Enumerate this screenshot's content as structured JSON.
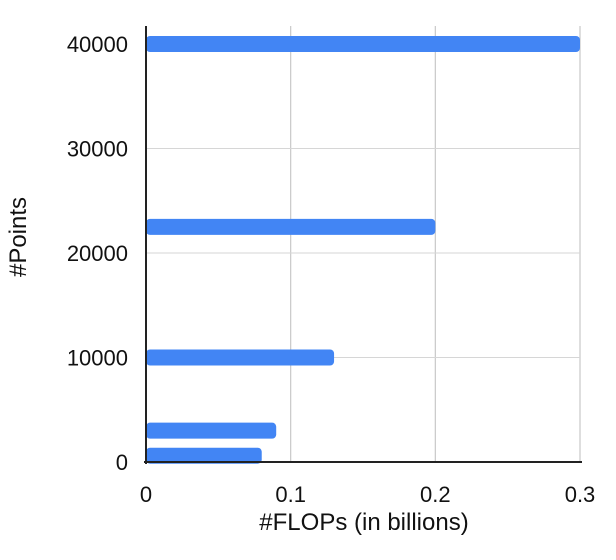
{
  "chart_data": {
    "type": "bar",
    "orientation": "horizontal",
    "title": "",
    "xlabel": "#FLOPs (in billions)",
    "ylabel": "#Points",
    "xlim": [
      0,
      0.3
    ],
    "ylim": [
      0,
      40000
    ],
    "x_ticks": [
      "0",
      "0.1",
      "0.2",
      "0.3"
    ],
    "y_ticks": [
      "0",
      "10000",
      "20000",
      "30000",
      "40000"
    ],
    "grid": "vertical",
    "legend": "none",
    "bar_color": "#4285f4",
    "bars": [
      {
        "points": 40000,
        "flops": 0.3
      },
      {
        "points": 22500,
        "flops": 0.2
      },
      {
        "points": 10000,
        "flops": 0.13
      },
      {
        "points": 3000,
        "flops": 0.09
      },
      {
        "points": 600,
        "flops": 0.08
      }
    ]
  }
}
